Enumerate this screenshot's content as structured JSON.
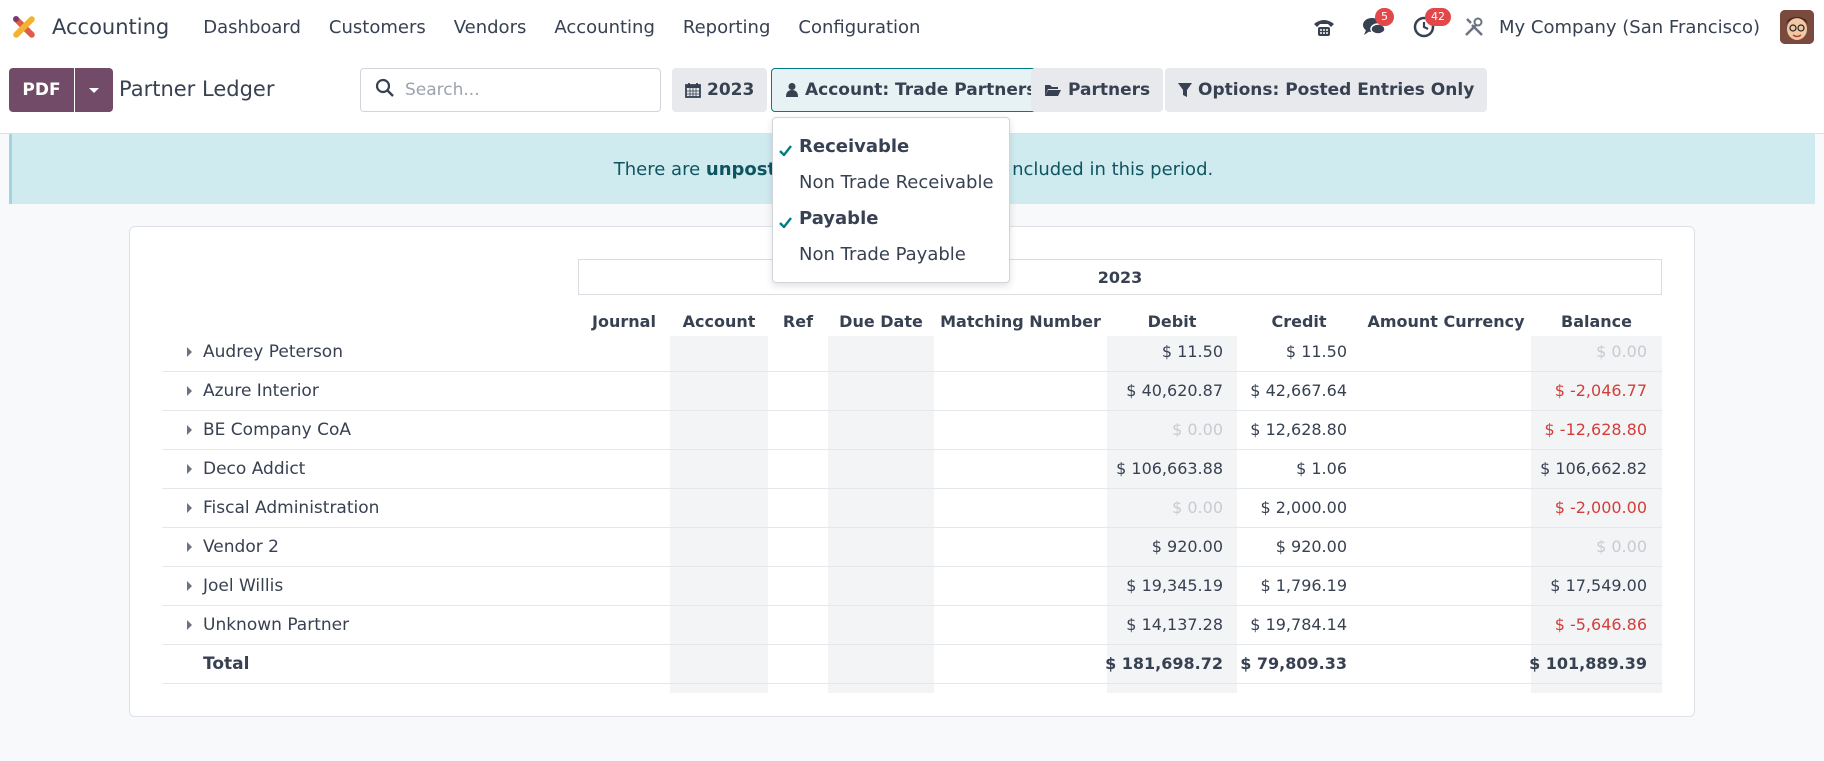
{
  "navbar": {
    "app_name": "Accounting",
    "menu": [
      "Dashboard",
      "Customers",
      "Vendors",
      "Accounting",
      "Reporting",
      "Configuration"
    ],
    "messages_count": "5",
    "activities_count": "42",
    "company": "My Company (San Francisco)"
  },
  "control": {
    "pdf_label": "PDF",
    "title": "Partner Ledger",
    "search_placeholder": "Search...",
    "filters": {
      "date": "2023",
      "account": "Account: Trade Partners",
      "partners": "Partners",
      "options": "Options: Posted Entries Only"
    }
  },
  "banner": {
    "prefix": "There are ",
    "bold": "unpost",
    "suffix": "ncluded in this period."
  },
  "account_dropdown": {
    "items": [
      {
        "label": "Receivable",
        "selected": true
      },
      {
        "label": "Non Trade Receivable",
        "selected": false
      },
      {
        "label": "Payable",
        "selected": true
      },
      {
        "label": "Non Trade Payable",
        "selected": false
      }
    ]
  },
  "report": {
    "period": "2023",
    "columns": [
      "Journal",
      "Account",
      "Ref",
      "Due Date",
      "Matching Number",
      "Debit",
      "Credit",
      "Amount Currency",
      "Balance"
    ],
    "rows": [
      {
        "name": "Audrey Peterson",
        "debit": "$ 11.50",
        "credit": "$ 11.50",
        "balance": "$ 0.00"
      },
      {
        "name": "Azure Interior",
        "debit": "$ 40,620.87",
        "credit": "$ 42,667.64",
        "balance": "$ -2,046.77"
      },
      {
        "name": "BE Company CoA",
        "debit": "$ 0.00",
        "credit": "$ 12,628.80",
        "balance": "$ -12,628.80"
      },
      {
        "name": "Deco Addict",
        "debit": "$ 106,663.88",
        "credit": "$ 1.06",
        "balance": "$ 106,662.82"
      },
      {
        "name": "Fiscal Administration",
        "debit": "$ 0.00",
        "credit": "$ 2,000.00",
        "balance": "$ -2,000.00"
      },
      {
        "name": "Vendor 2",
        "debit": "$ 920.00",
        "credit": "$ 920.00",
        "balance": "$ 0.00"
      },
      {
        "name": "Joel Willis",
        "debit": "$ 19,345.19",
        "credit": "$ 1,796.19",
        "balance": "$ 17,549.00"
      },
      {
        "name": "Unknown Partner",
        "debit": "$ 14,137.28",
        "credit": "$ 19,784.14",
        "balance": "$ -5,646.86"
      }
    ],
    "total": {
      "name": "Total",
      "debit": "$ 181,698.72",
      "credit": "$ 79,809.33",
      "balance": "$ 101,889.39"
    }
  },
  "colors": {
    "brand": "#714b67",
    "teal": "#017e84",
    "negative": "#d23f3a",
    "banner_bg": "#d0ebf0"
  }
}
